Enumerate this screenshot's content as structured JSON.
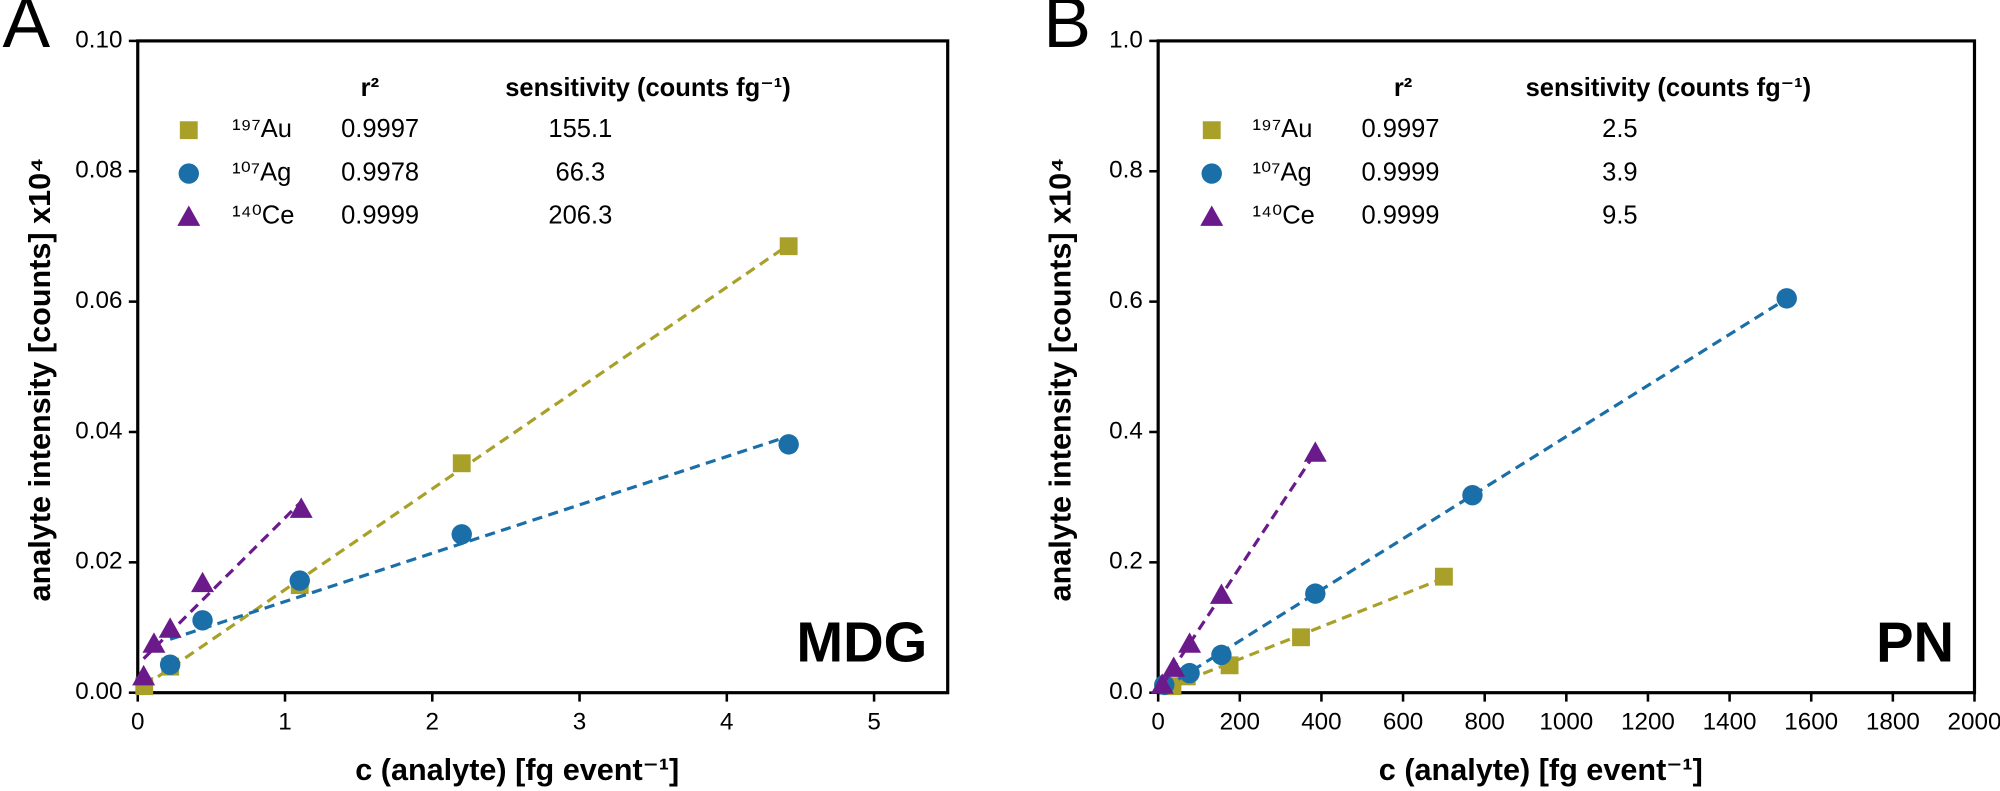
{
  "chart_data": [
    {
      "type": "scatter",
      "panel_label": "A",
      "annotation": "MDG",
      "xlabel": "c (analyte) [fg event⁻¹]",
      "ylabel": "analyte intensity [counts] x10⁴",
      "legend_header": [
        "r²",
        "sensitivity (counts fg⁻¹)"
      ],
      "xlim": [
        0,
        5.5
      ],
      "ylim": [
        0,
        0.1
      ],
      "xticks": [
        0,
        1,
        2,
        3,
        4,
        5
      ],
      "yticks": [
        {
          "value": 0,
          "label": "0.00"
        },
        {
          "value": 0.02,
          "label": "0.02"
        },
        {
          "value": 0.04,
          "label": "0.04"
        },
        {
          "value": 0.06,
          "label": "0.06"
        },
        {
          "value": 0.08,
          "label": "0.08"
        },
        {
          "value": 0.1,
          "label": "0.10"
        }
      ],
      "series": [
        {
          "name": "¹⁹⁷Au",
          "color": "#a9a02a",
          "marker": "square",
          "r2": "0.9997",
          "sensitivity": "155.1",
          "x": [
            0.044,
            0.22,
            1.1,
            2.2,
            4.42
          ],
          "values": [
            0.001,
            0.004,
            0.0165,
            0.0352,
            0.0685
          ]
        },
        {
          "name": "¹⁰⁷Ag",
          "color": "#1b6fa8",
          "marker": "circle",
          "r2": "0.9978",
          "sensitivity": "66.3",
          "x": [
            0.22,
            0.44,
            1.1,
            2.2,
            4.42
          ],
          "values": [
            0.0043,
            0.0111,
            0.0172,
            0.0243,
            0.0381
          ]
        },
        {
          "name": "¹⁴⁰Ce",
          "color": "#6b1a8c",
          "marker": "triangle",
          "r2": "0.9999",
          "sensitivity": "206.3",
          "x": [
            0.04,
            0.11,
            0.22,
            0.44,
            1.11
          ],
          "values": [
            0.0025,
            0.0075,
            0.0098,
            0.0168,
            0.0282
          ]
        }
      ]
    },
    {
      "type": "scatter",
      "panel_label": "B",
      "annotation": "PN",
      "xlabel": "c (analyte) [fg event⁻¹]",
      "ylabel": "analyte intensity [counts] x10⁴",
      "legend_header": [
        "r²",
        "sensitivity (counts fg⁻¹)"
      ],
      "xlim": [
        0,
        2000
      ],
      "ylim": [
        0,
        1
      ],
      "xticks": [
        0,
        200,
        400,
        600,
        800,
        1000,
        1200,
        1400,
        1600,
        1800,
        2000
      ],
      "yticks": [
        {
          "value": 0,
          "label": "0.0"
        },
        {
          "value": 0.2,
          "label": "0.2"
        },
        {
          "value": 0.4,
          "label": "0.4"
        },
        {
          "value": 0.6,
          "label": "0.6"
        },
        {
          "value": 0.8,
          "label": "0.8"
        },
        {
          "value": 1,
          "label": "1.0"
        }
      ],
      "series": [
        {
          "name": "¹⁹⁷Au",
          "color": "#a9a02a",
          "marker": "square",
          "r2": "0.9997",
          "sensitivity": "2.5",
          "x": [
            35,
            70,
            175,
            350,
            700
          ],
          "values": [
            0.01,
            0.025,
            0.042,
            0.085,
            0.178
          ]
        },
        {
          "name": "¹⁰⁷Ag",
          "color": "#1b6fa8",
          "marker": "circle",
          "r2": "0.9999",
          "sensitivity": "3.9",
          "x": [
            15,
            77,
            155,
            385,
            770,
            1540
          ],
          "values": [
            0.012,
            0.03,
            0.058,
            0.152,
            0.303,
            0.605
          ]
        },
        {
          "name": "¹⁴⁰Ce",
          "color": "#6b1a8c",
          "marker": "triangle",
          "r2": "0.9999",
          "sensitivity": "9.5",
          "x": [
            10,
            38,
            77,
            155,
            385
          ],
          "values": [
            0.012,
            0.038,
            0.075,
            0.15,
            0.368
          ]
        }
      ]
    }
  ]
}
